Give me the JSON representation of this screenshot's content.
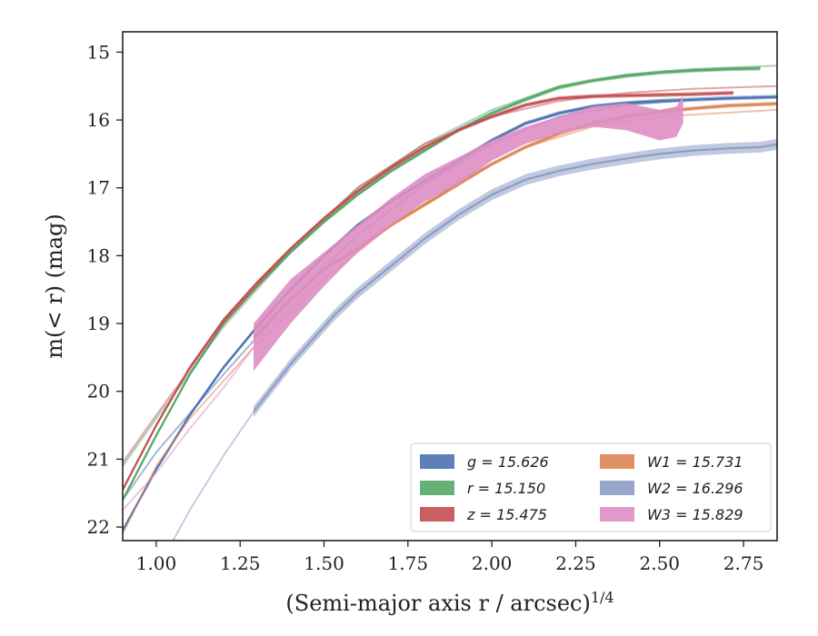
{
  "chart_data": {
    "type": "line",
    "title": "",
    "xlabel": "(Semi-major axis r / arcsec)",
    "xlabel_sup": "1/4",
    "ylabel": "m(< r) (mag)",
    "xlim": [
      0.9,
      2.85
    ],
    "ylim": [
      22.2,
      14.7
    ],
    "y_inverted": true,
    "grid": false,
    "x_ticks": [
      "1.00",
      "1.25",
      "1.50",
      "1.75",
      "2.00",
      "2.25",
      "2.50",
      "2.75"
    ],
    "x_tick_values": [
      1.0,
      1.25,
      1.5,
      1.75,
      2.0,
      2.25,
      2.5,
      2.75
    ],
    "y_ticks": [
      "15",
      "16",
      "17",
      "18",
      "19",
      "20",
      "21",
      "22"
    ],
    "y_tick_values": [
      15,
      16,
      17,
      18,
      19,
      20,
      21,
      22
    ],
    "legend_position": "lower-right",
    "series": [
      {
        "name": "g = 15.626",
        "color": "#4c72b0",
        "band_halfwidth": 0.03,
        "x": [
          0.9,
          1.0,
          1.1,
          1.2,
          1.3,
          1.4,
          1.5,
          1.6,
          1.7,
          1.8,
          1.9,
          2.0,
          2.1,
          2.2,
          2.3,
          2.4,
          2.5,
          2.6,
          2.7,
          2.85
        ],
        "y": [
          22.05,
          21.15,
          20.35,
          19.65,
          19.05,
          18.5,
          18.0,
          17.55,
          17.2,
          16.9,
          16.6,
          16.3,
          16.05,
          15.9,
          15.8,
          15.75,
          15.72,
          15.7,
          15.68,
          15.66
        ],
        "model_x": [
          0.9,
          1.0,
          1.2,
          1.4,
          1.6,
          1.8,
          2.0,
          2.2,
          2.4,
          2.6,
          2.85
        ],
        "model_y": [
          21.6,
          20.9,
          19.75,
          18.65,
          17.7,
          16.95,
          16.35,
          15.95,
          15.78,
          15.7,
          15.66
        ]
      },
      {
        "name": "r = 15.150",
        "color": "#55a868",
        "band_halfwidth": 0.03,
        "x": [
          0.9,
          1.0,
          1.1,
          1.2,
          1.3,
          1.4,
          1.5,
          1.6,
          1.7,
          1.8,
          1.9,
          2.0,
          2.1,
          2.2,
          2.3,
          2.4,
          2.5,
          2.6,
          2.7,
          2.8
        ],
        "y": [
          21.6,
          20.65,
          19.75,
          19.0,
          18.45,
          17.95,
          17.5,
          17.1,
          16.75,
          16.45,
          16.15,
          15.9,
          15.7,
          15.52,
          15.42,
          15.35,
          15.3,
          15.27,
          15.25,
          15.24
        ],
        "model_x": [
          0.9,
          1.0,
          1.2,
          1.4,
          1.6,
          1.8,
          2.0,
          2.2,
          2.4,
          2.6,
          2.85
        ],
        "model_y": [
          21.1,
          20.4,
          19.05,
          17.95,
          17.0,
          16.35,
          15.85,
          15.5,
          15.33,
          15.25,
          15.2
        ]
      },
      {
        "name": "z = 15.475",
        "color": "#c44e52",
        "band_halfwidth": 0.03,
        "x": [
          0.9,
          1.0,
          1.1,
          1.2,
          1.3,
          1.4,
          1.5,
          1.6,
          1.7,
          1.8,
          1.9,
          2.0,
          2.1,
          2.2,
          2.3,
          2.4,
          2.5,
          2.6,
          2.72
        ],
        "y": [
          21.45,
          20.5,
          19.65,
          18.95,
          18.4,
          17.9,
          17.45,
          17.05,
          16.7,
          16.4,
          16.15,
          15.95,
          15.78,
          15.68,
          15.65,
          15.64,
          15.63,
          15.62,
          15.6
        ],
        "model_x": [
          0.9,
          1.0,
          1.2,
          1.4,
          1.6,
          1.8,
          2.0,
          2.2,
          2.4,
          2.6,
          2.85
        ],
        "model_y": [
          21.05,
          20.35,
          19.0,
          17.9,
          17.0,
          16.35,
          15.95,
          15.72,
          15.6,
          15.54,
          15.5
        ]
      },
      {
        "name": "W1 = 15.731",
        "color": "#dd8452",
        "band_halfwidth": 0.03,
        "x": [
          1.29,
          1.4,
          1.5,
          1.6,
          1.7,
          1.8,
          1.9,
          2.0,
          2.1,
          2.2,
          2.3,
          2.4,
          2.5,
          2.6,
          2.7,
          2.85
        ],
        "y": [
          19.2,
          18.65,
          18.2,
          17.9,
          17.55,
          17.25,
          16.95,
          16.65,
          16.4,
          16.2,
          16.05,
          15.95,
          15.88,
          15.83,
          15.79,
          15.76
        ],
        "model_x": [
          0.9,
          1.0,
          1.1,
          1.2,
          1.3,
          1.5,
          1.7,
          1.9,
          2.1,
          2.3,
          2.5,
          2.85
        ],
        "model_y": [
          22.1,
          21.1,
          20.4,
          19.85,
          19.3,
          18.35,
          17.55,
          16.9,
          16.4,
          16.1,
          15.95,
          15.85
        ]
      },
      {
        "name": "W2 = 16.296",
        "color": "#8c9dc4",
        "band_halfwidth": 0.08,
        "x": [
          1.29,
          1.4,
          1.53,
          1.6,
          1.7,
          1.8,
          1.9,
          2.0,
          2.1,
          2.2,
          2.3,
          2.4,
          2.5,
          2.6,
          2.7,
          2.8,
          2.85
        ],
        "y": [
          20.3,
          19.6,
          18.88,
          18.55,
          18.15,
          17.75,
          17.4,
          17.1,
          16.88,
          16.75,
          16.65,
          16.57,
          16.5,
          16.45,
          16.42,
          16.4,
          16.36
        ],
        "model_x": [
          1.05,
          1.1,
          1.2,
          1.29
        ],
        "model_y": [
          22.2,
          21.75,
          20.95,
          20.3
        ]
      },
      {
        "name": "W3 = 15.829",
        "color": "#dd8ec2",
        "x": [
          1.29,
          1.4,
          1.5,
          1.6,
          1.7,
          1.8,
          1.9,
          2.0,
          2.1,
          2.2,
          2.3,
          2.4,
          2.5,
          2.55,
          2.57
        ],
        "y_lower": [
          19.7,
          19.0,
          18.45,
          17.95,
          17.55,
          17.2,
          16.95,
          16.6,
          16.35,
          16.2,
          16.1,
          16.15,
          16.3,
          16.25,
          16.05
        ],
        "y_upper": [
          19.0,
          18.35,
          17.95,
          17.55,
          17.15,
          16.8,
          16.55,
          16.3,
          16.1,
          15.95,
          15.8,
          15.75,
          15.85,
          15.8,
          15.65
        ],
        "model_x": [
          0.9,
          1.0,
          1.1,
          1.2,
          1.29
        ],
        "model_y": [
          21.75,
          21.2,
          20.55,
          19.95,
          19.35
        ]
      }
    ]
  }
}
